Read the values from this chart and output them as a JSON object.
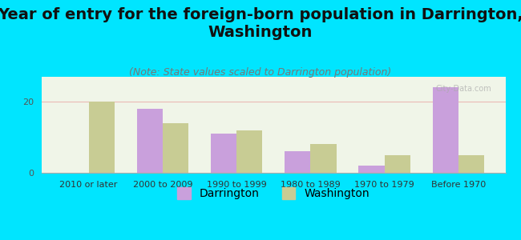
{
  "title": "Year of entry for the foreign-born population in Darrington,\nWashington",
  "subtitle": "(Note: State values scaled to Darrington population)",
  "categories": [
    "2010 or later",
    "2000 to 2009",
    "1990 to 1999",
    "1980 to 1989",
    "1970 to 1979",
    "Before 1970"
  ],
  "darrington_values": [
    0,
    18,
    11,
    6,
    2,
    24
  ],
  "washington_values": [
    20,
    14,
    12,
    8,
    5,
    5
  ],
  "darrington_color": "#c9a0dc",
  "washington_color": "#c8cc94",
  "background_outer": "#00e5ff",
  "background_inner_top": "#f0f5e8",
  "background_inner_bottom": "#e8f0e0",
  "ylim": [
    0,
    27
  ],
  "yticks": [
    0,
    20
  ],
  "bar_width": 0.35,
  "title_fontsize": 14,
  "subtitle_fontsize": 9,
  "tick_fontsize": 8,
  "legend_fontsize": 10
}
